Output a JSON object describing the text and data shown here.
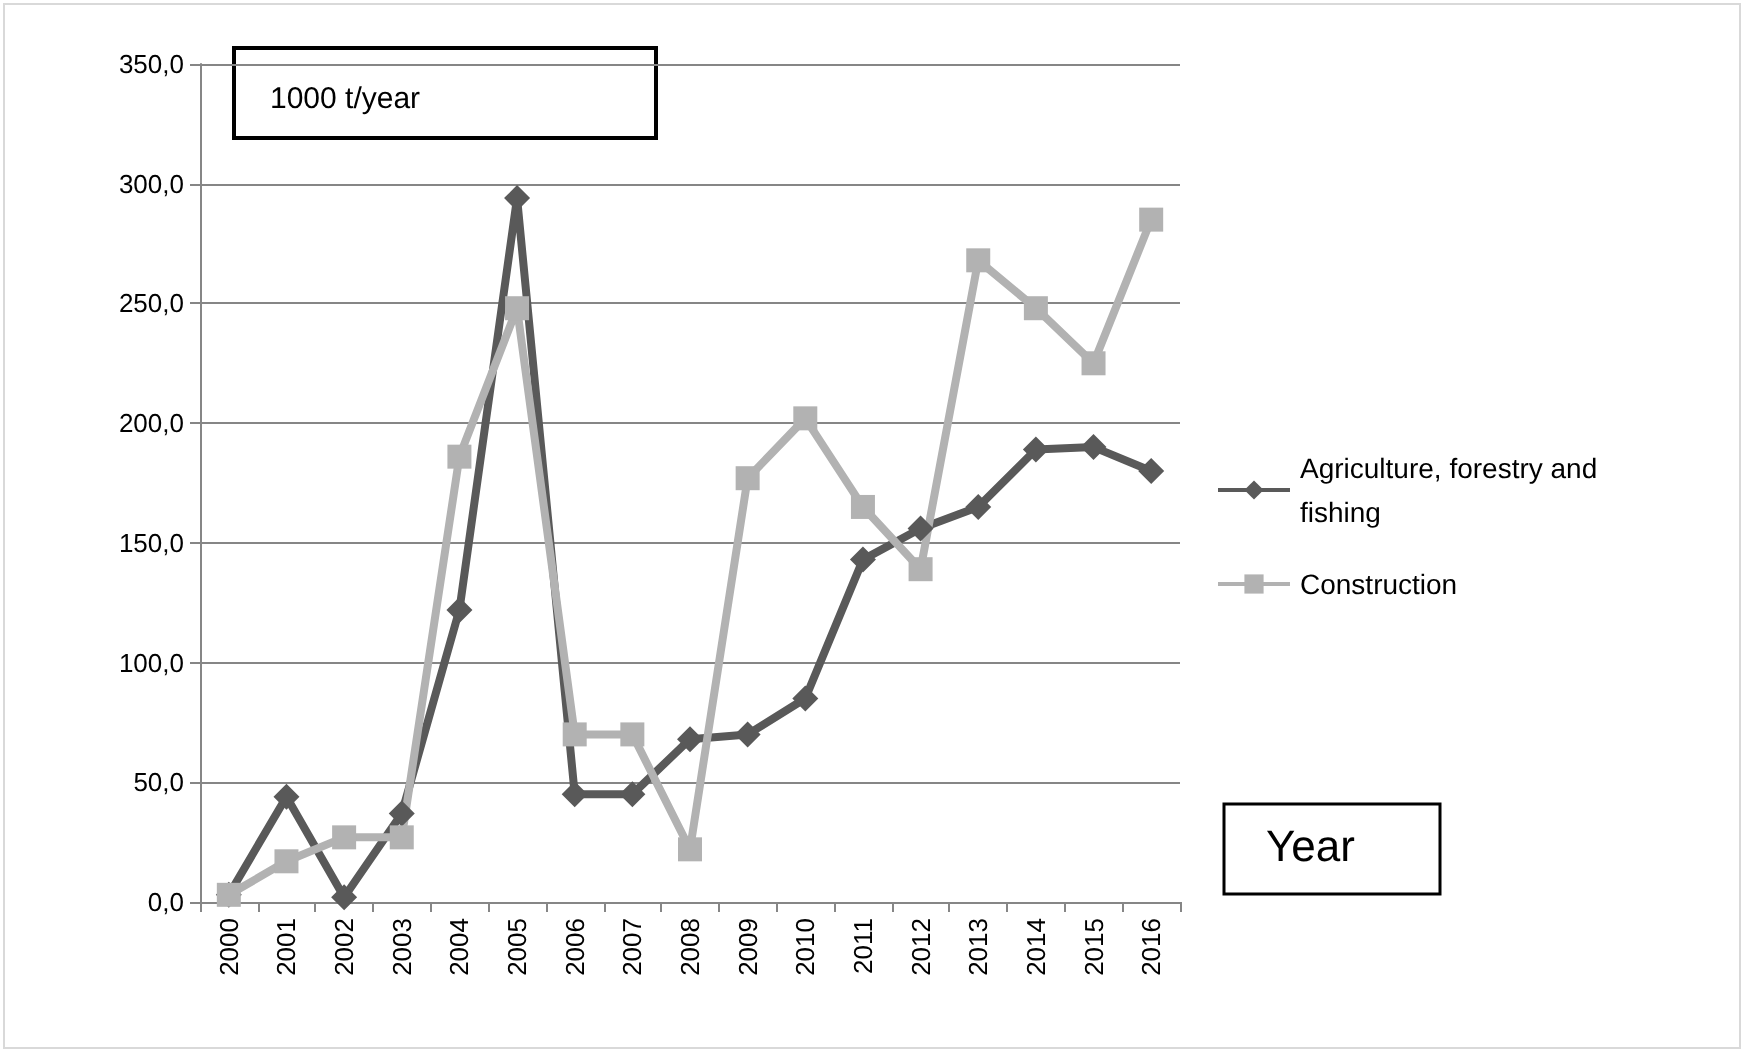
{
  "chart_data": {
    "type": "line",
    "ylabel": "1000 t/year",
    "xlabel": "Year",
    "categories": [
      "2000",
      "2001",
      "2002",
      "2003",
      "2004",
      "2005",
      "2006",
      "2007",
      "2008",
      "2009",
      "2010",
      "2011",
      "2012",
      "2013",
      "2014",
      "2015",
      "2016"
    ],
    "series": [
      {
        "name": "Agriculture, forestry and fishing",
        "color": "#595959",
        "marker": "diamond",
        "values": [
          3,
          44,
          2,
          37,
          122,
          294,
          45,
          45,
          68,
          70,
          85,
          143,
          156,
          165,
          189,
          190,
          180
        ]
      },
      {
        "name": "Construction",
        "color": "#b2b2b2",
        "marker": "square",
        "values": [
          3,
          17,
          27,
          27,
          186,
          248,
          70,
          70,
          22,
          177,
          202,
          165,
          139,
          268,
          248,
          225,
          285
        ]
      }
    ],
    "ylim": [
      0,
      350
    ],
    "yticks": [
      {
        "value": 0,
        "label": "0,0"
      },
      {
        "value": 50,
        "label": "50,0"
      },
      {
        "value": 100,
        "label": "100,0"
      },
      {
        "value": 150,
        "label": "150,0"
      },
      {
        "value": 200,
        "label": "200,0"
      },
      {
        "value": 250,
        "label": "250,0"
      },
      {
        "value": 300,
        "label": "300,0"
      },
      {
        "value": 350,
        "label": "350,0"
      }
    ],
    "grid": "y",
    "legend": "right"
  }
}
